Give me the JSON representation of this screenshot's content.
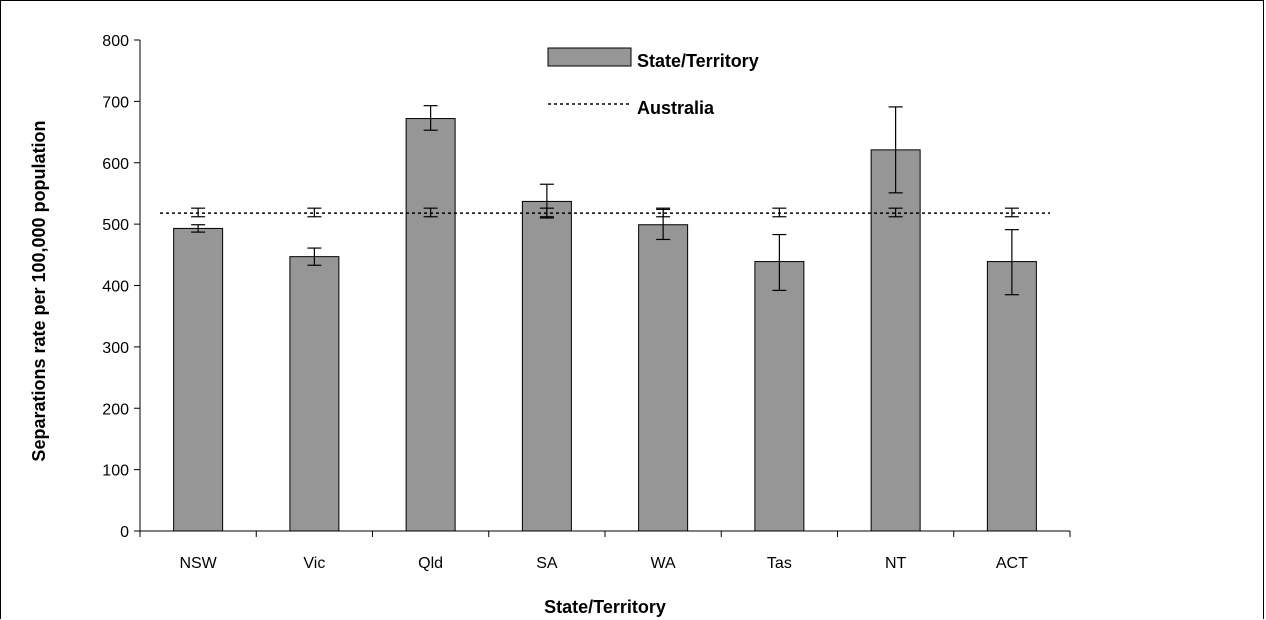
{
  "chart_data": {
    "type": "bar",
    "categories": [
      "NSW",
      "Vic",
      "Qld",
      "SA",
      "WA",
      "Tas",
      "NT",
      "ACT"
    ],
    "series": [
      {
        "name": "State/Territory",
        "values": [
          493,
          447,
          672,
          537,
          499,
          439,
          621,
          439
        ],
        "error_low": [
          487,
          433,
          653,
          510,
          475,
          392,
          551,
          385
        ],
        "error_high": [
          499,
          461,
          693,
          565,
          524,
          483,
          691,
          491
        ]
      },
      {
        "name": "Australia",
        "style": "dotted-line",
        "value": 518,
        "error_low": 512,
        "error_high": 526
      }
    ],
    "xlabel": "State/Territory",
    "ylabel": "Separations rate per 100,000 population",
    "ylim": [
      0,
      800
    ],
    "yticks": [
      "0",
      "100",
      "200",
      "300",
      "400",
      "500",
      "600",
      "700",
      "800"
    ],
    "grid": false,
    "legend_position": "top-center",
    "colors": {
      "bar": "#969696",
      "bar_stroke": "#000000",
      "line": "#000000"
    }
  }
}
